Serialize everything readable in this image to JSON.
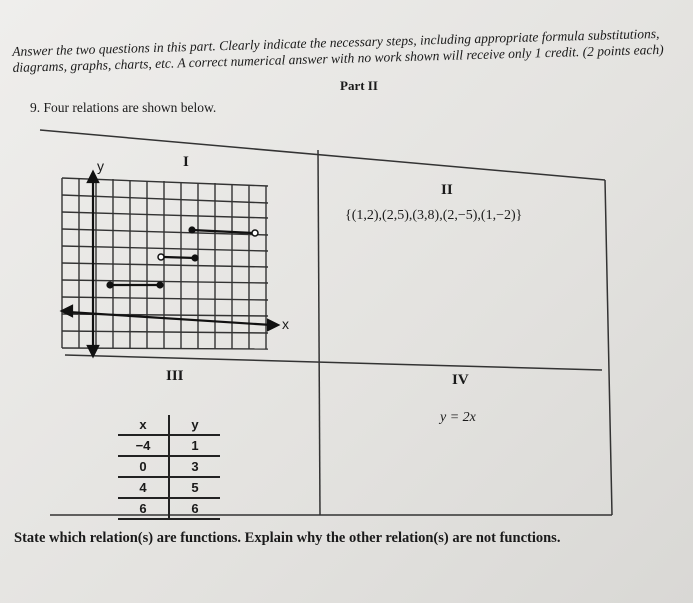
{
  "part": "Part II",
  "instructions": "Answer the two questions in this part. Clearly indicate the necessary steps, including appropriate formula substitutions, diagrams, graphs, charts, etc. A correct numerical answer with no work shown will receive only 1 credit. (2 points each)",
  "question": "9. Four relations are shown below.",
  "relations": [
    {
      "label": "I",
      "y_axis": "y",
      "x_axis": "x"
    },
    {
      "label": "II",
      "set": "{(1,2),(2,5),(3,8),(2,−5),(1,−2)}"
    },
    {
      "label": "III",
      "table": {
        "columns": [
          "x",
          "y"
        ],
        "rows": [
          [
            "−4",
            "1"
          ],
          [
            "0",
            "3"
          ],
          [
            "4",
            "5"
          ],
          [
            "6",
            "6"
          ]
        ]
      }
    },
    {
      "label": "IV",
      "equation": "y = 2x"
    }
  ],
  "prompt": "State which relation(s) are functions. Explain why the other relation(s) are not functions."
}
